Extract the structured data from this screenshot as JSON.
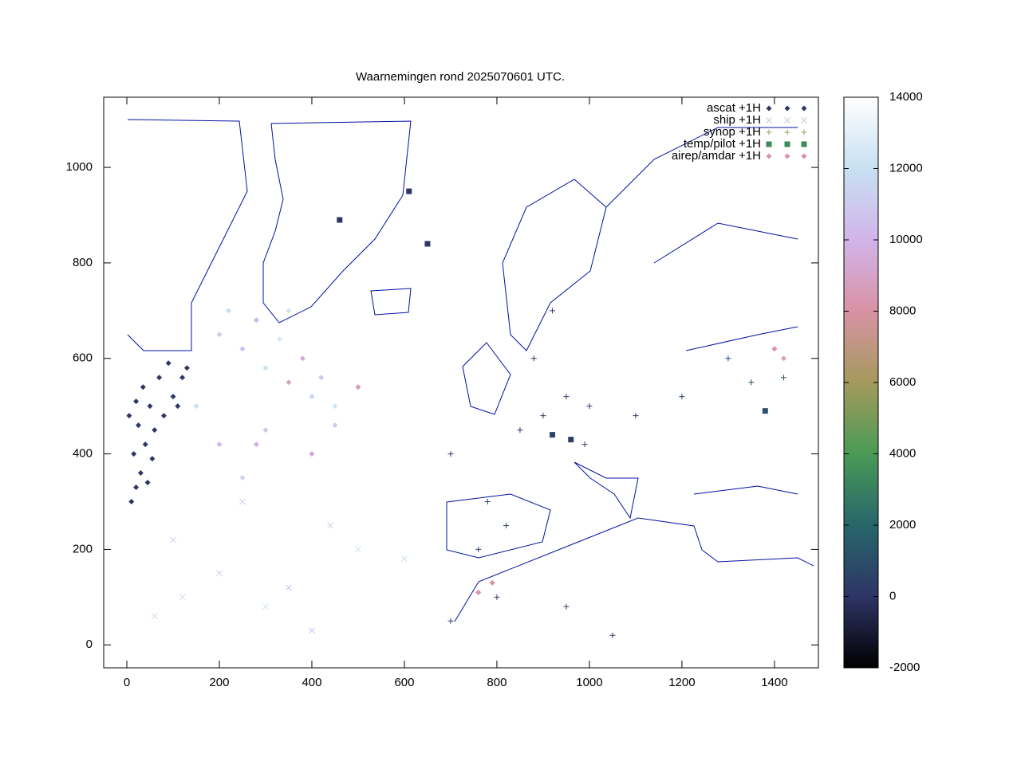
{
  "chart_data": {
    "type": "scatter",
    "title": "Waarnemingen rond 2025070601 UTC.",
    "xlim": [
      -50,
      1495
    ],
    "ylim": [
      -48,
      1147
    ],
    "xticks": [
      0,
      200,
      400,
      600,
      800,
      1000,
      1200,
      1400
    ],
    "yticks": [
      0,
      200,
      400,
      600,
      800,
      1000
    ],
    "cblim": [
      -2000,
      14000
    ],
    "cbticks": [
      -2000,
      0,
      2000,
      4000,
      6000,
      8000,
      10000,
      12000,
      14000
    ],
    "palette": [
      {
        "value": -2000,
        "color": "#000000"
      },
      {
        "value": 0,
        "color": "#2e3566"
      },
      {
        "value": 2000,
        "color": "#27666a"
      },
      {
        "value": 4000,
        "color": "#4a9a56"
      },
      {
        "value": 6000,
        "color": "#a49a5c"
      },
      {
        "value": 8000,
        "color": "#d892a4"
      },
      {
        "value": 10000,
        "color": "#d2b4ea"
      },
      {
        "value": 12000,
        "color": "#c8e0f2"
      },
      {
        "value": 14000,
        "color": "#ffffff"
      }
    ],
    "series": [
      {
        "name": "ascat +1H",
        "color": "#2e3566",
        "marker": "diamond",
        "x": [
          10,
          20,
          30,
          15,
          40,
          60,
          25,
          80,
          50,
          100,
          20,
          120,
          70,
          130,
          90,
          35,
          5,
          55,
          45,
          110
        ],
        "y": [
          300,
          330,
          360,
          400,
          420,
          450,
          460,
          480,
          500,
          520,
          510,
          560,
          560,
          580,
          590,
          540,
          480,
          390,
          340,
          500
        ],
        "z": [
          50,
          50,
          60,
          40,
          50,
          70,
          50,
          60,
          50,
          80,
          40,
          90,
          60,
          100,
          70,
          50,
          40,
          50,
          50,
          80
        ]
      },
      {
        "name": "ship +1H",
        "color": "#c8c8d8",
        "marker": "cross",
        "x": [
          100,
          200,
          300,
          400,
          60,
          250,
          440,
          500,
          120,
          350,
          600
        ],
        "y": [
          220,
          150,
          80,
          30,
          60,
          300,
          250,
          200,
          100,
          120,
          180
        ],
        "z": [
          11000,
          11500,
          12000,
          10500,
          11800,
          11200,
          10800,
          12200,
          11600,
          10400,
          12000
        ]
      },
      {
        "name": "synop +1H",
        "color": "#a49a5c",
        "marker": "plus",
        "x": [
          900,
          950,
          1000,
          850,
          780,
          820,
          760,
          880,
          920,
          700,
          1100,
          1200,
          1350,
          1420,
          800,
          950,
          1050,
          700,
          1300,
          990
        ],
        "y": [
          480,
          520,
          500,
          450,
          300,
          250,
          200,
          600,
          700,
          400,
          480,
          520,
          550,
          560,
          100,
          80,
          20,
          50,
          600,
          420
        ],
        "z": [
          100,
          300,
          200,
          50,
          600,
          700,
          400,
          100,
          150,
          20,
          150,
          500,
          1000,
          1400,
          300,
          400,
          200,
          100,
          800,
          250
        ]
      },
      {
        "name": "temp/pilot +1H",
        "color": "#3a8a5a",
        "marker": "square",
        "x": [
          460,
          610,
          920,
          1380,
          650,
          960
        ],
        "y": [
          890,
          950,
          440,
          490,
          840,
          430
        ],
        "z": [
          50,
          100,
          600,
          1200,
          50,
          300
        ]
      },
      {
        "name": "airep/amdar +1H",
        "color": "#d892a4",
        "marker": "diamond",
        "x": [
          200,
          250,
          300,
          350,
          400,
          450,
          220,
          280,
          330,
          380,
          420,
          500,
          150,
          300,
          400,
          250,
          1400,
          1420,
          760,
          790,
          350,
          280,
          450,
          200
        ],
        "y": [
          650,
          620,
          580,
          550,
          520,
          500,
          700,
          680,
          640,
          600,
          560,
          540,
          500,
          450,
          400,
          350,
          620,
          600,
          110,
          130,
          700,
          420,
          460,
          420
        ],
        "z": [
          11000,
          10500,
          12000,
          9000,
          11500,
          12200,
          11800,
          10000,
          12500,
          9500,
          11000,
          8500,
          12000,
          10800,
          9200,
          11400,
          8000,
          9000,
          8200,
          7800,
          12300,
          9800,
          11200,
          10200
        ]
      }
    ]
  }
}
